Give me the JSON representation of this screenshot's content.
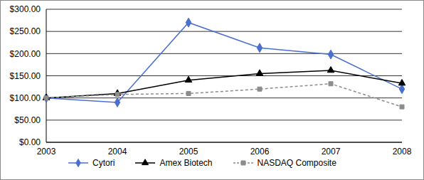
{
  "chart_data": {
    "type": "line",
    "categories": [
      "2003",
      "2004",
      "2005",
      "2006",
      "2007",
      "2008"
    ],
    "series": [
      {
        "name": "Cytori",
        "color": "#4a6fd0",
        "marker": "diamond",
        "line_style": "solid",
        "values": [
          100,
          90,
          270,
          213,
          198,
          120
        ]
      },
      {
        "name": "Amex Biotech",
        "color": "#000000",
        "marker": "triangle",
        "line_style": "solid",
        "values": [
          100,
          110,
          140,
          155,
          162,
          133
        ]
      },
      {
        "name": "NASDAQ Composite",
        "color": "#8c8c8c",
        "marker": "square",
        "line_style": "dashed",
        "values": [
          100,
          108,
          110,
          120,
          132,
          80
        ]
      }
    ],
    "ylim": [
      0,
      300
    ],
    "yticks": [
      {
        "value": 0,
        "label": "$0.00"
      },
      {
        "value": 50,
        "label": "$50.00"
      },
      {
        "value": 100,
        "label": "$100.00"
      },
      {
        "value": 150,
        "label": "$150.00"
      },
      {
        "value": 200,
        "label": "$200.00"
      },
      {
        "value": 250,
        "label": "$250.00"
      },
      {
        "value": 300,
        "label": "$300.00"
      }
    ],
    "grid": true,
    "legend": "bottom"
  }
}
